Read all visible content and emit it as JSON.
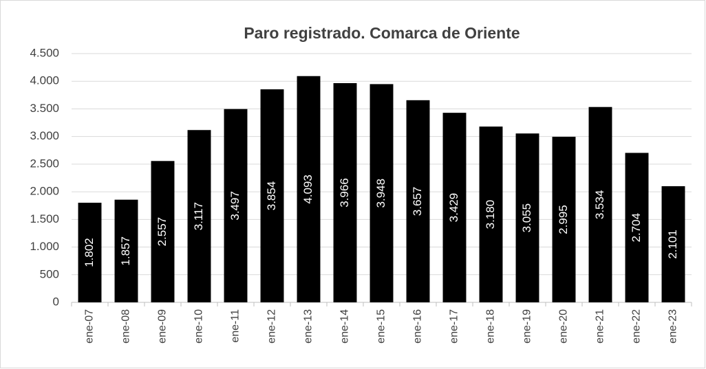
{
  "chart_data": {
    "type": "bar",
    "title": "Paro registrado. Comarca de Oriente",
    "categories": [
      "ene-07",
      "ene-08",
      "ene-09",
      "ene-10",
      "ene-11",
      "ene-12",
      "ene-13",
      "ene-14",
      "ene-15",
      "ene-16",
      "ene-17",
      "ene-18",
      "ene-19",
      "ene-20",
      "ene-21",
      "ene-22",
      "ene-23"
    ],
    "values": [
      1802,
      1857,
      2557,
      3117,
      3497,
      3854,
      4093,
      3966,
      3948,
      3657,
      3429,
      3180,
      3055,
      2995,
      3534,
      2704,
      2101
    ],
    "value_labels": [
      "1.802",
      "1.857",
      "2.557",
      "3.117",
      "3.497",
      "3.854",
      "4.093",
      "3.966",
      "3.948",
      "3.657",
      "3.429",
      "3.180",
      "3.055",
      "2.995",
      "3.534",
      "2.704",
      "2.101"
    ],
    "color": "#000000",
    "ylim": [
      0,
      4500
    ],
    "yticks": [
      0,
      500,
      {
        "value": 1000,
        "label": "1.000"
      },
      {
        "value": 1500,
        "label": "1.500"
      },
      {
        "value": 2000,
        "label": "2.000"
      },
      {
        "value": 2500,
        "label": "2.500"
      },
      {
        "value": 3000,
        "label": "3.000"
      },
      {
        "value": 3500,
        "label": "3.500"
      },
      {
        "value": 4000,
        "label": "4.000"
      },
      {
        "value": 4500,
        "label": "4.500"
      }
    ],
    "grid": true
  }
}
